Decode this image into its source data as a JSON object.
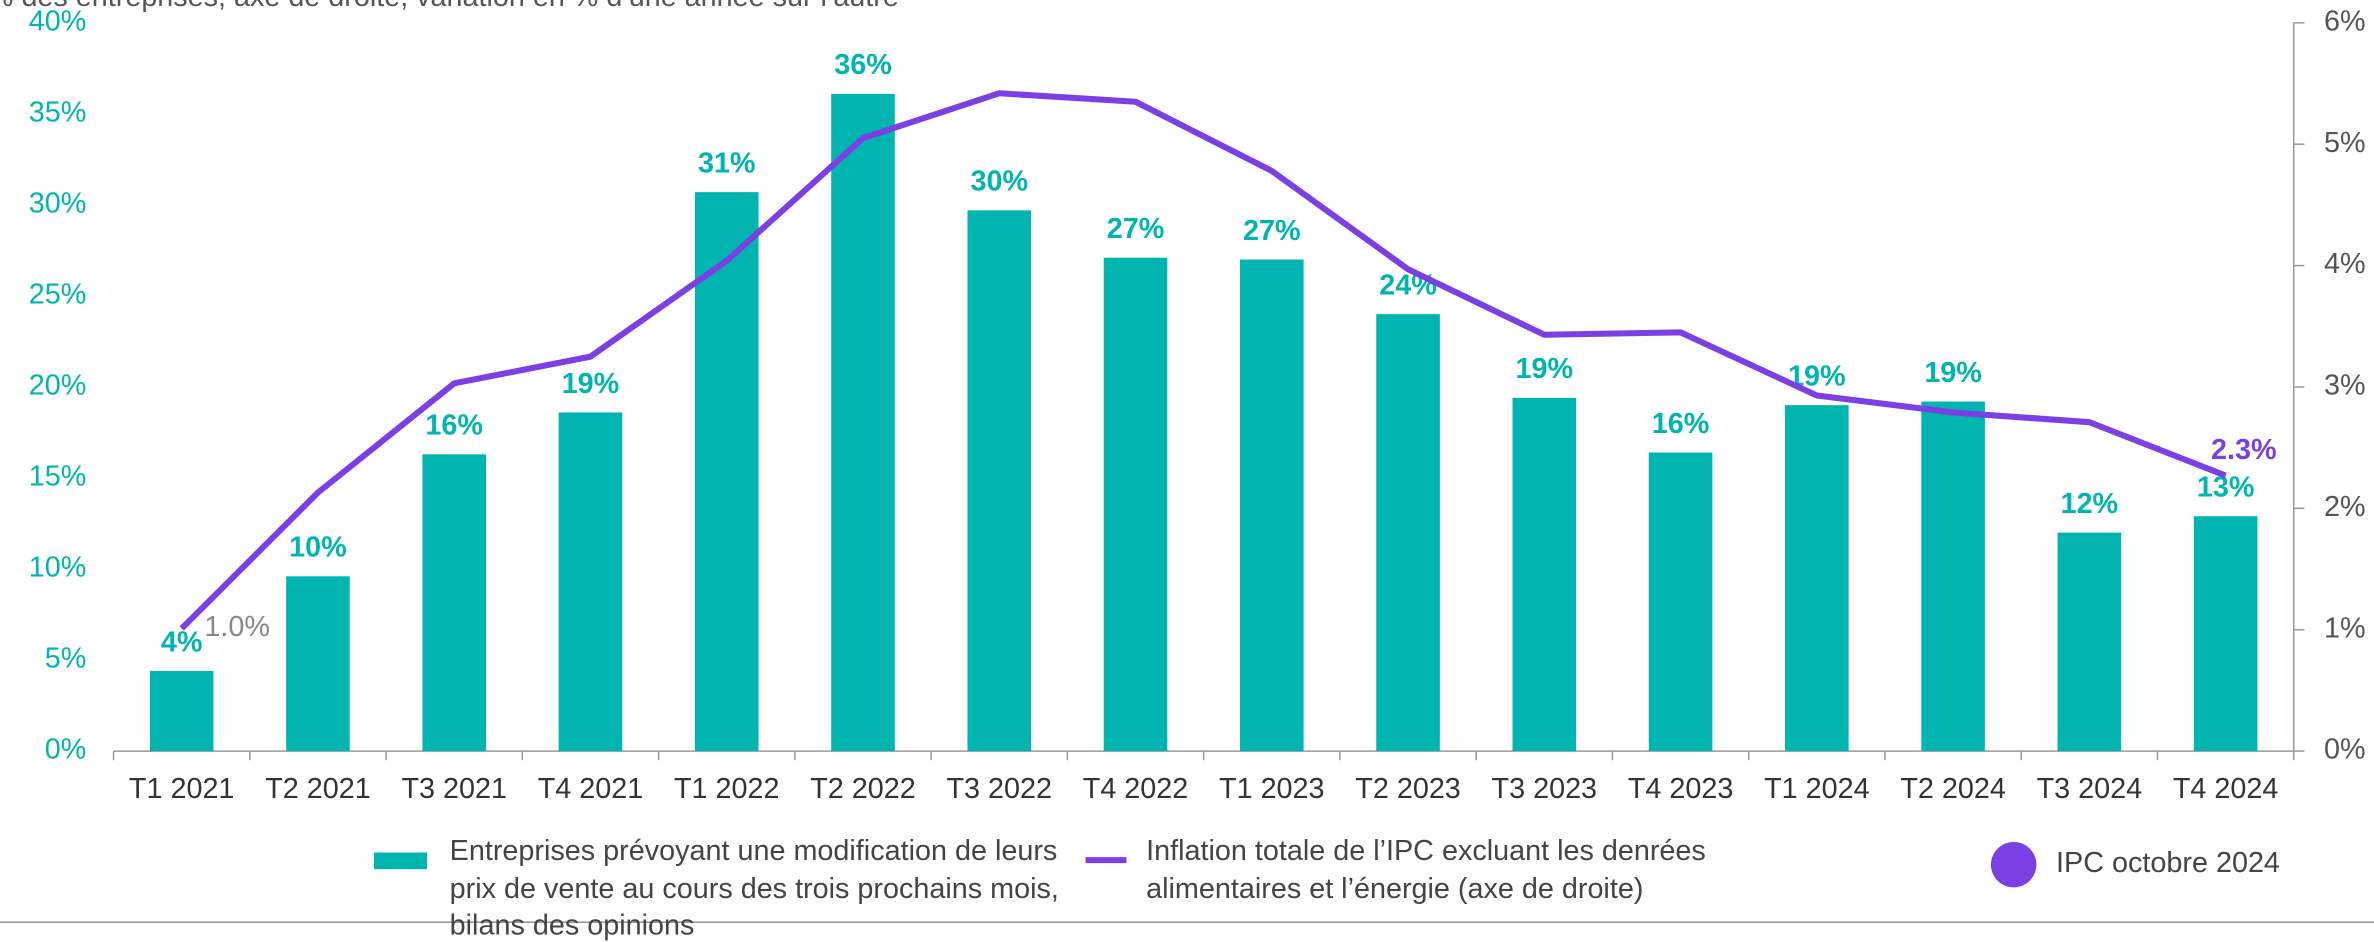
{
  "chart_data": {
    "type": "bar",
    "subtitle": "% des entreprises; axe de droite, variation en % d’une année sur l’autre",
    "categories": [
      "T1 2021",
      "T2 2021",
      "T3 2021",
      "T4 2021",
      "T1 2022",
      "T2 2022",
      "T3 2022",
      "T4 2022",
      "T1 2023",
      "T2 2023",
      "T3 2023",
      "T4 2023",
      "T1 2024",
      "T2 2024",
      "T3 2024",
      "T4 2024"
    ],
    "series": [
      {
        "name": "Entreprises prévoyant une modification de leurs prix de vente au cours des trois prochains mois, bilans des opinions",
        "color": "#00b5b0",
        "type": "bar",
        "values": [
          4.4,
          9.6,
          16.3,
          18.6,
          30.7,
          36.1,
          29.7,
          27.1,
          27.0,
          24.0,
          19.4,
          16.4,
          19.0,
          19.2,
          12.0,
          12.9
        ],
        "value_labels": [
          "4%",
          "10%",
          "16%",
          "19%",
          "31%",
          "36%",
          "30%",
          "27%",
          "27%",
          "24%",
          "19%",
          "16%",
          "19%",
          "19%",
          "12%",
          "13%"
        ]
      },
      {
        "name": "Inflation totale de l’IPC excluant les denrées alimentaires et l’énergie (axe de droite)",
        "color": "#7b3fe4",
        "type": "line",
        "axis": "y2",
        "values": [
          1.01,
          2.13,
          3.03,
          3.25,
          4.04,
          5.05,
          5.42,
          5.35,
          4.78,
          3.97,
          3.43,
          3.45,
          2.93,
          2.79,
          2.71,
          2.27
        ],
        "value_labels": [
          "1.0%",
          null,
          null,
          null,
          null,
          null,
          null,
          null,
          null,
          null,
          null,
          null,
          null,
          null,
          null,
          "2.3%"
        ]
      },
      {
        "name": "IPC octobre 2024",
        "color": "#7b3fe4",
        "type": "point"
      }
    ],
    "ylim": [
      0,
      40
    ],
    "yticks": [
      {
        "value": 0,
        "label": "0%"
      },
      {
        "value": 5,
        "label": "5%"
      },
      {
        "value": 10,
        "label": "10%"
      },
      {
        "value": 15,
        "label": "15%"
      },
      {
        "value": 20,
        "label": "20%"
      },
      {
        "value": 25,
        "label": "25%"
      },
      {
        "value": 30,
        "label": "30%"
      },
      {
        "value": 35,
        "label": "35%"
      },
      {
        "value": 40,
        "label": "40%"
      }
    ],
    "y2lim": [
      0,
      6
    ],
    "y2ticks": [
      {
        "value": 0,
        "label": "0%"
      },
      {
        "value": 1,
        "label": "1%"
      },
      {
        "value": 2,
        "label": "2%"
      },
      {
        "value": 3,
        "label": "3%"
      },
      {
        "value": 4,
        "label": "4%"
      },
      {
        "value": 5,
        "label": "5%"
      },
      {
        "value": 6,
        "label": "6%"
      }
    ],
    "grid": false,
    "legend": "bottom"
  }
}
